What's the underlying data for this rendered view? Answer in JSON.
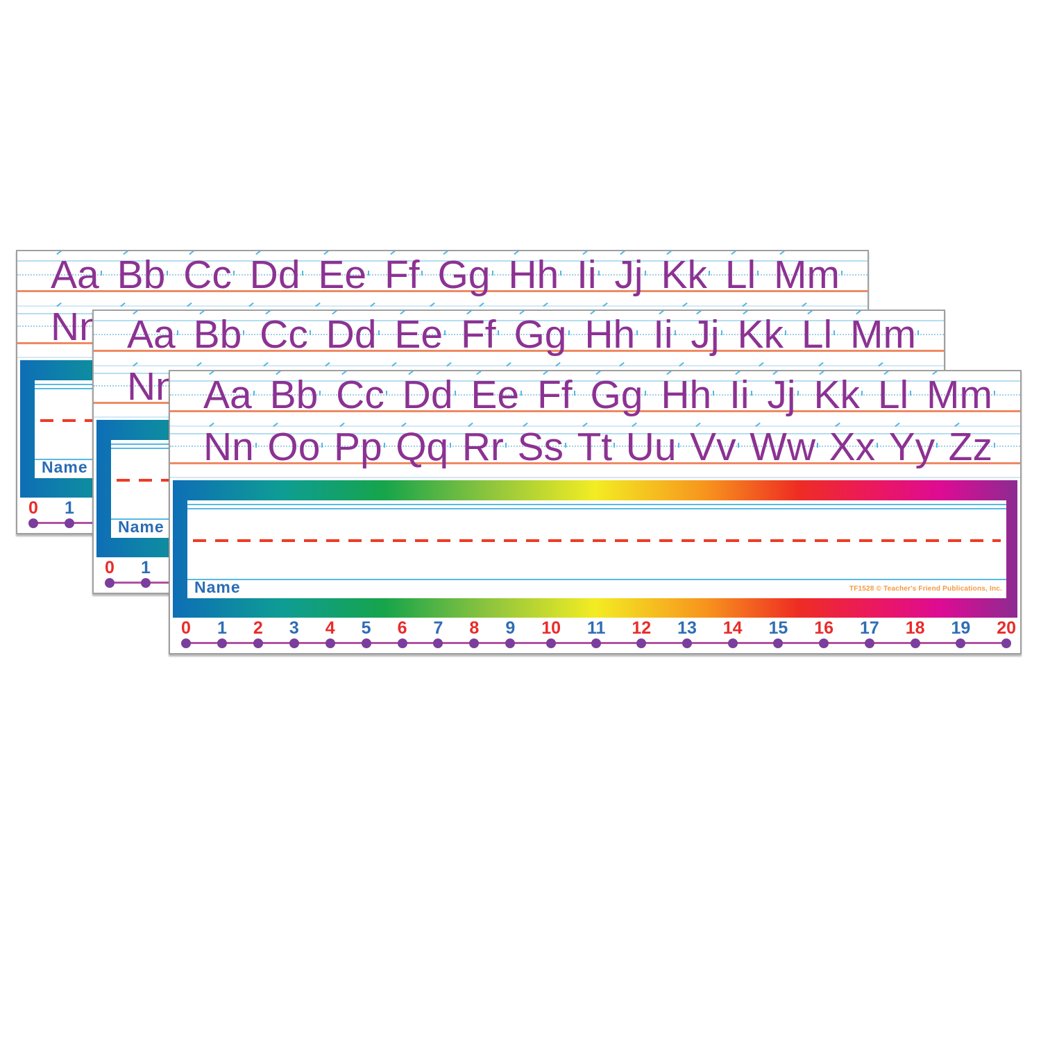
{
  "nameplate": {
    "card_count": 3,
    "alphabet": {
      "row1": [
        "Aa",
        "Bb",
        "Cc",
        "Dd",
        "Ee",
        "Ff",
        "Gg",
        "Hh",
        "Ii",
        "Jj",
        "Kk",
        "Ll",
        "Mm"
      ],
      "row2": [
        "Nn",
        "Oo",
        "Pp",
        "Qq",
        "Rr",
        "Ss",
        "Tt",
        "Uu",
        "Vv",
        "Ww",
        "Xx",
        "Yy",
        "Zz"
      ]
    },
    "name_label": "Name",
    "copyright": "TF1528 © Teacher's Friend Publications, Inc.",
    "number_line": [
      "0",
      "1",
      "2",
      "3",
      "4",
      "5",
      "6",
      "7",
      "8",
      "9",
      "10",
      "11",
      "12",
      "13",
      "14",
      "15",
      "16",
      "17",
      "18",
      "19",
      "20"
    ],
    "colors": {
      "letter_purple": "#8c3292",
      "rule_blue": "#b5ddf0",
      "rule_dotted": "#9fd0e8",
      "rule_faint": "#d3e9f6",
      "rule_orange": "#ef8a62",
      "arrow_cyan": "#54b8e4",
      "write_blue": "#56b9e4",
      "dashed_red": "#ee3b25",
      "name_blue": "#2a6cb5",
      "copyright_orange": "#f49a3e",
      "number_red": "#e82c2a",
      "number_blue": "#2f6db4",
      "dot_purple": "#7b3e9c",
      "line_magenta": "#b0519f",
      "rainbow": [
        "#0e6eb6",
        "#0e9d94",
        "#16a44b",
        "#8ac33e",
        "#f3ec23",
        "#f7951d",
        "#ee2d23",
        "#eb185f",
        "#dd0b94",
        "#8d2b92"
      ]
    }
  }
}
